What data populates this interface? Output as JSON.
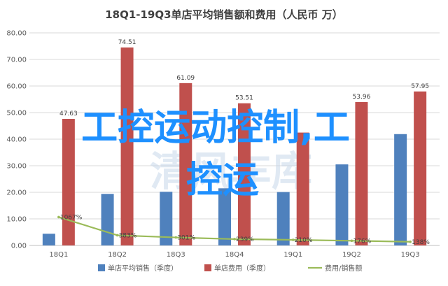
{
  "chart_data": {
    "type": "bar",
    "title": "18Q1-19Q3单店平均销售额和费用（人民币 万）",
    "categories": [
      "18Q1",
      "18Q2",
      "18Q3",
      "18Q4",
      "19Q1",
      "19Q2",
      "19Q3"
    ],
    "ylim": [
      0,
      80
    ],
    "yticks": [
      "0.00",
      "10.00",
      "20.00",
      "30.00",
      "40.00",
      "50.00",
      "60.00",
      "70.00",
      "80.00"
    ],
    "grid": true,
    "legend_position": "bottom",
    "series": [
      {
        "name": "单店平均销售（季度）",
        "color": "#4f81bd",
        "values": [
          4.4,
          19.4,
          20.2,
          21.5,
          20.1,
          30.5,
          41.9
        ],
        "labels": [
          "",
          "",
          "",
          "",
          "",
          "",
          ""
        ]
      },
      {
        "name": "单店费用（季度）",
        "color": "#c0504d",
        "values": [
          47.63,
          74.51,
          61.09,
          53.51,
          42.48,
          53.96,
          57.95
        ],
        "labels": [
          "47.63",
          "74.51",
          "61.09",
          "53.51",
          "",
          "53.96",
          "57.95"
        ]
      },
      {
        "name": "费用/销售额",
        "color": "#9bbb59",
        "type": "line",
        "values": [
          10.67,
          3.83,
          3.01,
          2.39,
          2.1,
          1.76,
          1.38
        ],
        "labels": [
          "1067%",
          "383%",
          "301%",
          "239%",
          "210%",
          "176%",
          "138%"
        ]
      }
    ]
  },
  "overlay": {
    "line1": "工控运动控制,工",
    "line2": "控运",
    "watermark": "清风车库",
    "watermark_color": "#c7d8ea",
    "overlay_color": "#1e90ff"
  }
}
